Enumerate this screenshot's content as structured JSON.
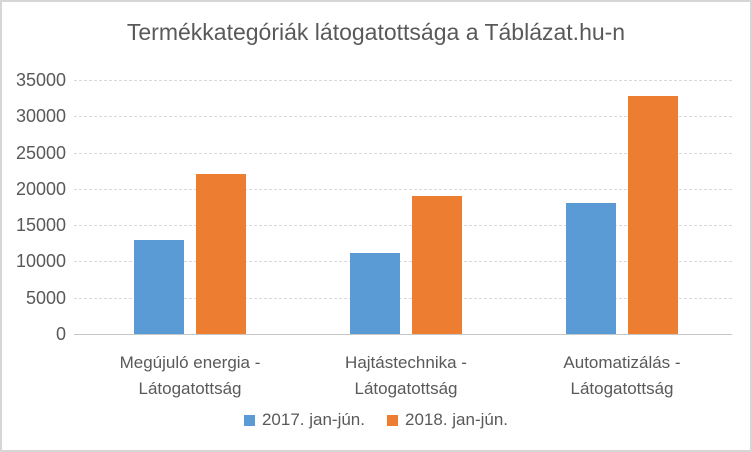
{
  "chart_data": {
    "type": "bar",
    "title": "Termékkategóriák látogatottsága a Táblázat.hu-n",
    "categories": [
      {
        "line1": "Megújuló energia -",
        "line2": "Látogatottság"
      },
      {
        "line1": "Hajtástechnika -",
        "line2": "Látogatottság"
      },
      {
        "line1": "Automatizálás -",
        "line2": "Látogatottság"
      }
    ],
    "series": [
      {
        "name": "2017. jan-jún.",
        "color": "#5B9BD5",
        "values": [
          13000,
          11200,
          18000
        ]
      },
      {
        "name": "2018. jan-jún.",
        "color": "#ED7D31",
        "values": [
          22100,
          19000,
          32800
        ]
      }
    ],
    "ylim": [
      0,
      35000
    ],
    "ytick_step": 5000,
    "yticks": [
      0,
      5000,
      10000,
      15000,
      20000,
      25000,
      30000,
      35000
    ],
    "xlabel": "",
    "ylabel": "",
    "grid": true,
    "legend_position": "bottom"
  },
  "colors": {
    "text": "#595959",
    "gridline": "#D9D9D9",
    "axis_line": "#C6C6C6",
    "frame_border": "#D6D6D6",
    "background": "#FFFFFF",
    "series_2017": "#5B9BD5",
    "series_2018": "#ED7D31"
  }
}
